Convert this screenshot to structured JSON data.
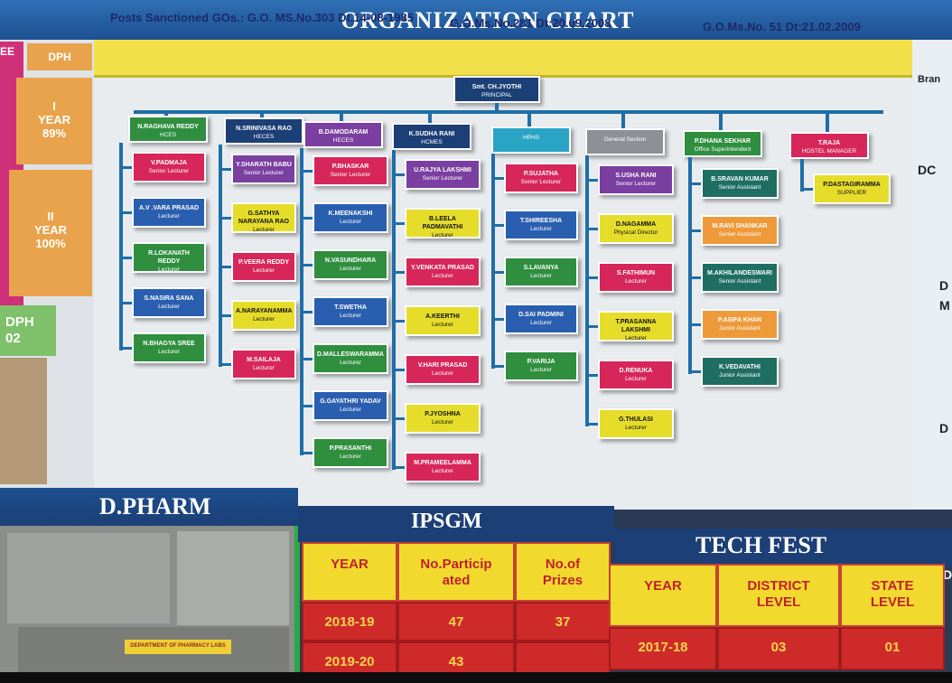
{
  "header": {
    "title": "ORGANIZATION CHART"
  },
  "gos": {
    "go1": "Posts Sanctioned GOs.: G.O. MS.No.303 Dt.14-08-1985",
    "go2": "G.O.Ms.No.281 Dt:20.09.2008",
    "go3": "G.O.Ms.No. 51 Dt:21.02.2009"
  },
  "left": {
    "ee": "EE",
    "dph": "DPH",
    "year1": "I\nYEAR\n89%",
    "year2": "II\nYEAR\n100%",
    "dph02": "DPH\n02"
  },
  "right": {
    "bran": "Bran",
    "dc": "DC",
    "d": "D",
    "m": "M",
    "d2": "D",
    "d3": "D"
  },
  "principal": {
    "name": "Smt. CH.JYOTHI",
    "role": "PRINCIPAL"
  },
  "heads": [
    {
      "name": "N.RAGHAVA REDDY",
      "role": "HCES"
    },
    {
      "name": "N.SRINIVASA RAO",
      "role": "HECES"
    },
    {
      "name": "B.DAMODARAM",
      "role": "HECES"
    },
    {
      "name": "K.SUDHA RANI",
      "role": "HCMES"
    },
    {
      "name": "",
      "role": "HPHS"
    },
    {
      "name": "",
      "role": "General Section"
    },
    {
      "name": "P.DHANA SEKHAR",
      "role": "Office Superintendent"
    },
    {
      "name": "T.RAJA",
      "role": "HOSTEL MANAGER"
    }
  ],
  "columns": [
    [
      {
        "name": "V.PADMAJA",
        "role": "Senior Lecturer"
      },
      {
        "name": "A.V .VARA PRASAD",
        "role": "Lecturer"
      },
      {
        "name": "R.LOKANATH REDDY",
        "role": "Lecturer"
      },
      {
        "name": "S.NASIRA SANA",
        "role": "Lecturer"
      },
      {
        "name": "N.BHAGYA SREE",
        "role": "Lecturer"
      }
    ],
    [
      {
        "name": "Y.SHARATH BABU",
        "role": "Senior Lecturer"
      },
      {
        "name": "G.SATHYA NARAYANA RAO",
        "role": "Lecturer"
      },
      {
        "name": "P.VEERA REDDY",
        "role": "Lecturer"
      },
      {
        "name": "A.NARAYANAMMA",
        "role": "Lecturer"
      },
      {
        "name": "M.SAILAJA",
        "role": "Lecturer"
      }
    ],
    [
      {
        "name": "P.BHASKAR",
        "role": "Senior Lecturer"
      },
      {
        "name": "K.MEENAKSHI",
        "role": "Lecturer"
      },
      {
        "name": "N.VASUNDHARA",
        "role": "Lecturer"
      },
      {
        "name": "T.SWETHA",
        "role": "Lecturer"
      },
      {
        "name": "D.MALLESWARAMMA",
        "role": "Lecturer"
      },
      {
        "name": "G.GAYATHRI YADAV",
        "role": "Lecturer"
      },
      {
        "name": "P.PRASANTHI",
        "role": "Lecturer"
      }
    ],
    [
      {
        "name": "U.RAJYA LAKSHMI",
        "role": "Senior Lecturer"
      },
      {
        "name": "B.LEELA PADMAVATHI",
        "role": "Lecturer"
      },
      {
        "name": "Y.VENKATA PRASAD",
        "role": "Lecturer"
      },
      {
        "name": "A.KEERTHI",
        "role": "Lecturer"
      },
      {
        "name": "V.HARI PRASAD",
        "role": "Lecturer"
      },
      {
        "name": "P.JYOSHNA",
        "role": "Lecturer"
      },
      {
        "name": "M.PRAMEELAMMA",
        "role": "Lecturer"
      }
    ],
    [
      {
        "name": "P.SUJATHA",
        "role": "Senior Lecturer"
      },
      {
        "name": "T.SHIREESHA",
        "role": "Lecturer"
      },
      {
        "name": "S.LAVANYA",
        "role": "Lecturer"
      },
      {
        "name": "D.SAI PADMINI",
        "role": "Lecturer"
      },
      {
        "name": "P.VARIJA",
        "role": "Lecturer"
      }
    ],
    [
      {
        "name": "S.USHA RANI",
        "role": "Senior Lecturer"
      },
      {
        "name": "D.NAGAMMA",
        "role": "Physical Director"
      },
      {
        "name": "S.FATHIMUN",
        "role": "Lecturer"
      },
      {
        "name": "T.PRASANNA LAKSHMI",
        "role": "Lecturer"
      },
      {
        "name": "D.RENUKA",
        "role": "Lecturer"
      },
      {
        "name": "G.THULASI",
        "role": "Lecturer"
      }
    ],
    [
      {
        "name": "B.SRAVAN KUMAR",
        "role": "Senior Assistant"
      },
      {
        "name": "M.RAVI SHANKAR",
        "role": "Senior Assistant"
      },
      {
        "name": "M.AKHILANDESWARI",
        "role": "Senior Assistant"
      },
      {
        "name": "P.ASIFA KHAN",
        "role": "Junior Assistant"
      },
      {
        "name": "K.VEDAVATHI",
        "role": "Junior Assistant"
      }
    ],
    [
      {
        "name": "P.DASTAGIRAMMA",
        "role": "SUPPLIER"
      }
    ]
  ],
  "bottom": {
    "dpharm": "D.PHARM",
    "ipsgm": "IPSGM",
    "techfest": "TECH FEST",
    "ipsgm_headers": [
      "YEAR",
      "No.Particip\nated",
      "No.of\nPrizes"
    ],
    "ipsgm_rows": [
      [
        "2018-19",
        "47",
        "37"
      ],
      [
        "2019-20",
        "43",
        ""
      ]
    ],
    "tech_headers": [
      "YEAR",
      "DISTRICT\nLEVEL",
      "STATE\nLEVEL"
    ],
    "tech_rows": [
      [
        "2017-18",
        "03",
        "01"
      ]
    ],
    "lab_sign": "DEPARTMENT OF PHARMACY LABS"
  },
  "colors": {
    "green": "#2f8f3f",
    "blue": "#2a5fb0",
    "purple": "#7a3fa0",
    "red": "#d7265a",
    "yellow": "#e6dd2b",
    "teal": "#1f6e62",
    "orange": "#ee9a3a",
    "gray": "#8d9195",
    "cyan": "#2aa4c4",
    "darkblue": "#1c3f76"
  }
}
